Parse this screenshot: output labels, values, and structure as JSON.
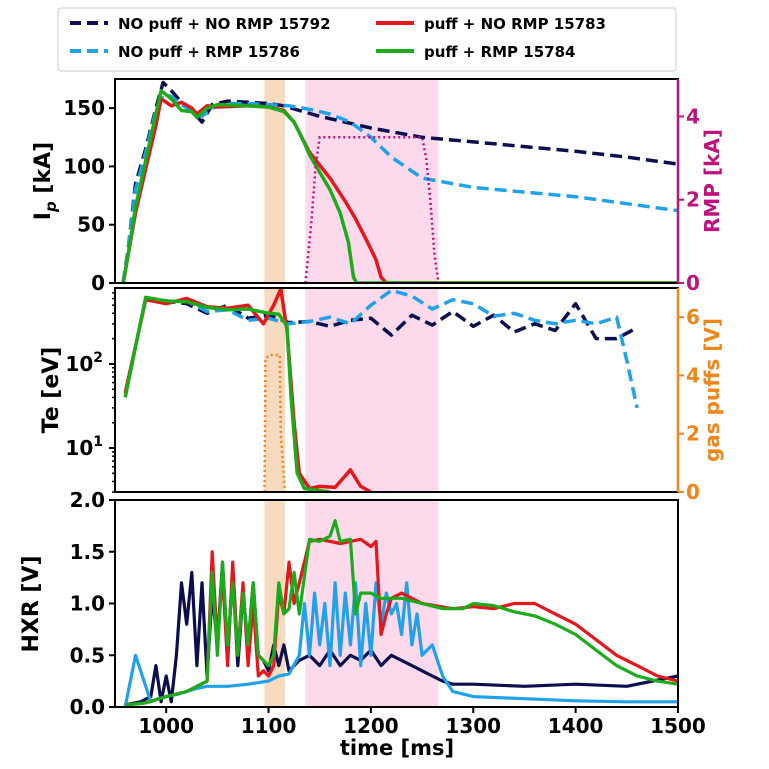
{
  "colors": {
    "navy": "#0b0f4f",
    "lightblue": "#1fa2ea",
    "red": "#e5161c",
    "green": "#1bab1b",
    "magenta": "#c0127e",
    "orange": "#f28418",
    "pink_band": "#fbd3e7",
    "orange_band": "#f7d3b3"
  },
  "chart_data": [
    {
      "type": "line",
      "panel": "top",
      "ylabel": "I",
      "ylabel_sub": "p",
      "ylabel_unit": " [kA]",
      "y2label": "RMP [kA]",
      "xlim": [
        950,
        1500
      ],
      "ylim": [
        0,
        175
      ],
      "y2lim": [
        0,
        4.9
      ],
      "yticks": [
        "0",
        "50",
        "100",
        "150"
      ],
      "y2ticks": [
        "0",
        "2",
        "4"
      ],
      "shaded_regions": [
        {
          "x0": 1096,
          "x1": 1116,
          "color": "orange"
        },
        {
          "x0": 1136,
          "x1": 1266,
          "color": "pink"
        }
      ],
      "legend": [
        {
          "label": "NO puff + NO RMP 15792",
          "color": "navy",
          "dashed": true
        },
        {
          "label": "NO puff + RMP 15786",
          "color": "lightblue",
          "dashed": true
        },
        {
          "label": "puff + NO RMP 15783",
          "color": "red",
          "dashed": false
        },
        {
          "label": "puff + RMP 15784",
          "color": "green",
          "dashed": false
        }
      ],
      "series": [
        {
          "name": "NO puff + NO RMP 15792",
          "color": "navy",
          "dash": true,
          "x": [
            958,
            963,
            970,
            980,
            990,
            997,
            1005,
            1015,
            1025,
            1035,
            1045,
            1060,
            1080,
            1100,
            1115,
            1130,
            1150,
            1200,
            1250,
            1300,
            1350,
            1400,
            1450,
            1500
          ],
          "y": [
            0,
            30,
            85,
            115,
            150,
            172,
            165,
            155,
            148,
            138,
            153,
            156,
            155,
            154,
            152,
            148,
            143,
            133,
            125,
            121,
            117,
            113,
            108,
            102
          ]
        },
        {
          "name": "NO puff + RMP 15786",
          "color": "lightblue",
          "dash": true,
          "x": [
            958,
            963,
            970,
            980,
            990,
            997,
            1005,
            1015,
            1025,
            1035,
            1045,
            1060,
            1080,
            1100,
            1120,
            1140,
            1160,
            1180,
            1200,
            1220,
            1250,
            1300,
            1350,
            1400,
            1450,
            1500
          ],
          "y": [
            0,
            30,
            80,
            112,
            148,
            162,
            160,
            153,
            148,
            143,
            150,
            154,
            154,
            153,
            152,
            149,
            145,
            138,
            125,
            108,
            90,
            82,
            78,
            74,
            68,
            62
          ]
        },
        {
          "name": "puff + NO RMP 15783",
          "color": "red",
          "dash": false,
          "x": [
            958,
            963,
            970,
            980,
            990,
            995,
            1005,
            1015,
            1025,
            1030,
            1040,
            1050,
            1080,
            1100,
            1115,
            1125,
            1140,
            1160,
            1175,
            1185,
            1195,
            1205,
            1210,
            1215,
            1300,
            1400,
            1500
          ],
          "y": [
            0,
            25,
            60,
            98,
            135,
            158,
            152,
            155,
            150,
            145,
            152,
            151,
            152,
            151,
            148,
            138,
            112,
            90,
            70,
            55,
            38,
            20,
            5,
            0,
            0,
            0,
            0
          ]
        },
        {
          "name": "puff + RMP 15784",
          "color": "green",
          "dash": false,
          "x": [
            958,
            963,
            970,
            980,
            990,
            995,
            1005,
            1015,
            1025,
            1030,
            1040,
            1050,
            1080,
            1100,
            1115,
            1125,
            1135,
            1140,
            1150,
            1160,
            1170,
            1178,
            1183,
            1186,
            1300,
            1400,
            1500
          ],
          "y": [
            0,
            25,
            65,
            105,
            145,
            165,
            158,
            148,
            147,
            142,
            150,
            153,
            152,
            151,
            147,
            138,
            120,
            110,
            95,
            80,
            60,
            35,
            5,
            0,
            0,
            0,
            0
          ]
        }
      ],
      "rmp_trace": {
        "name": "RMP",
        "color": "magenta",
        "x": [
          1136,
          1142,
          1146,
          1150,
          1200,
          1250,
          1254,
          1258,
          1262,
          1266
        ],
        "y": [
          0,
          1.5,
          2.8,
          3.5,
          3.5,
          3.5,
          3.0,
          2.0,
          0.7,
          0
        ]
      }
    },
    {
      "type": "line",
      "panel": "middle",
      "ylabel": "Te [eV]",
      "y2label": "gas puffs [V]",
      "yscale": "log",
      "xlim": [
        950,
        1500
      ],
      "ylim": [
        3,
        800
      ],
      "y2lim": [
        0,
        7
      ],
      "yticks": [
        {
          "value": 10,
          "base": "10",
          "exp": "1"
        },
        {
          "value": 100,
          "base": "10",
          "exp": "2"
        }
      ],
      "y2ticks": [
        "0",
        "2",
        "4",
        "6"
      ],
      "series": [
        {
          "name": "NO puff + NO RMP 15792",
          "color": "navy",
          "dash": true,
          "x": [
            980,
            1000,
            1020,
            1040,
            1060,
            1080,
            1100,
            1120,
            1140,
            1160,
            1180,
            1200,
            1220,
            1240,
            1260,
            1280,
            1300,
            1320,
            1340,
            1360,
            1380,
            1400,
            1420,
            1440,
            1460
          ],
          "y": [
            600,
            560,
            520,
            400,
            500,
            350,
            380,
            310,
            320,
            280,
            330,
            350,
            220,
            380,
            290,
            420,
            280,
            380,
            240,
            300,
            250,
            520,
            200,
            200,
            270
          ]
        },
        {
          "name": "NO puff + RMP 15786",
          "color": "lightblue",
          "dash": true,
          "x": [
            980,
            1000,
            1020,
            1040,
            1060,
            1080,
            1100,
            1120,
            1140,
            1160,
            1180,
            1200,
            1220,
            1240,
            1260,
            1280,
            1300,
            1320,
            1340,
            1360,
            1380,
            1400,
            1420,
            1440,
            1450,
            1460
          ],
          "y": [
            580,
            550,
            560,
            420,
            440,
            330,
            350,
            300,
            320,
            360,
            300,
            500,
            750,
            640,
            450,
            580,
            520,
            370,
            400,
            330,
            300,
            330,
            300,
            360,
            110,
            30
          ]
        },
        {
          "name": "puff + NO RMP 15783",
          "color": "red",
          "dash": false,
          "x": [
            960,
            980,
            1000,
            1020,
            1040,
            1060,
            1080,
            1095,
            1105,
            1112,
            1118,
            1125,
            1130,
            1140,
            1150,
            1165,
            1180,
            1190,
            1200
          ],
          "y": [
            45,
            580,
            520,
            600,
            480,
            460,
            500,
            300,
            500,
            780,
            250,
            20,
            5,
            3.3,
            3.5,
            3.4,
            5.5,
            3.5,
            3.0
          ]
        },
        {
          "name": "puff + RMP 15784",
          "color": "green",
          "dash": false,
          "x": [
            960,
            980,
            1000,
            1020,
            1040,
            1060,
            1080,
            1100,
            1110,
            1118,
            1122,
            1128,
            1135,
            1160
          ],
          "y": [
            40,
            620,
            560,
            550,
            470,
            440,
            450,
            400,
            390,
            280,
            40,
            5,
            3.3,
            3.0
          ]
        }
      ],
      "puff_trace": {
        "name": "gas puffs",
        "color": "orange",
        "x": [
          1096,
          1097,
          1103,
          1111,
          1112,
          1115,
          1116
        ],
        "y": [
          0,
          4.6,
          4.7,
          4.7,
          2.0,
          0.5,
          0
        ]
      }
    },
    {
      "type": "line",
      "panel": "bottom",
      "ylabel": "HXR [V]",
      "xlabel": "time [ms]",
      "xlim": [
        950,
        1500
      ],
      "ylim": [
        0,
        2.0
      ],
      "yticks": [
        "0.0",
        "0.5",
        "1.0",
        "1.5",
        "2.0"
      ],
      "xticks": [
        "1000",
        "1100",
        "1200",
        "1300",
        "1400",
        "1500"
      ],
      "series": [
        {
          "name": "NO puff + NO RMP 15792",
          "color": "navy",
          "dash": false,
          "x": [
            960,
            975,
            985,
            990,
            995,
            1000,
            1005,
            1010,
            1015,
            1020,
            1025,
            1030,
            1035,
            1040,
            1045,
            1050,
            1055,
            1060,
            1065,
            1070,
            1075,
            1080,
            1085,
            1090,
            1095,
            1100,
            1105,
            1110,
            1115,
            1120,
            1130,
            1140,
            1150,
            1160,
            1170,
            1180,
            1190,
            1200,
            1210,
            1220,
            1230,
            1240,
            1250,
            1260,
            1270,
            1280,
            1300,
            1350,
            1400,
            1450,
            1500
          ],
          "y": [
            0.02,
            0.05,
            0.1,
            0.4,
            0.05,
            0.3,
            0.05,
            0.5,
            1.2,
            0.8,
            1.3,
            0.4,
            1.2,
            0.3,
            1.1,
            0.6,
            1.4,
            0.5,
            1.3,
            0.4,
            1.1,
            0.6,
            1.2,
            0.5,
            0.45,
            0.35,
            0.6,
            0.4,
            0.6,
            0.35,
            0.45,
            0.5,
            0.4,
            0.55,
            0.4,
            0.5,
            0.45,
            0.55,
            0.4,
            0.5,
            0.45,
            0.4,
            0.35,
            0.3,
            0.25,
            0.22,
            0.22,
            0.2,
            0.22,
            0.2,
            0.3
          ]
        },
        {
          "name": "NO puff + RMP 15786",
          "color": "lightblue",
          "dash": false,
          "x": [
            960,
            970,
            985,
            992,
            1000,
            1010,
            1020,
            1030,
            1040,
            1060,
            1080,
            1100,
            1110,
            1120,
            1130,
            1135,
            1140,
            1145,
            1150,
            1155,
            1160,
            1165,
            1170,
            1175,
            1180,
            1185,
            1190,
            1195,
            1200,
            1205,
            1210,
            1215,
            1220,
            1225,
            1230,
            1235,
            1240,
            1245,
            1250,
            1260,
            1270,
            1280,
            1300,
            1350,
            1400,
            1450,
            1500
          ],
          "y": [
            0.0,
            0.5,
            0.05,
            0.08,
            0.1,
            0.12,
            0.15,
            0.18,
            0.2,
            0.2,
            0.22,
            0.25,
            0.3,
            0.32,
            0.5,
            1.0,
            0.5,
            1.1,
            0.6,
            1.0,
            0.4,
            1.2,
            0.5,
            1.1,
            0.6,
            1.2,
            0.4,
            1.0,
            0.5,
            1.2,
            0.8,
            1.1,
            0.9,
            1.0,
            0.7,
            1.2,
            0.6,
            0.9,
            0.5,
            0.6,
            0.3,
            0.15,
            0.1,
            0.08,
            0.06,
            0.05,
            0.05
          ]
        },
        {
          "name": "puff + NO RMP 15783",
          "color": "red",
          "dash": false,
          "x": [
            960,
            980,
            1000,
            1020,
            1030,
            1040,
            1045,
            1050,
            1055,
            1060,
            1065,
            1070,
            1075,
            1080,
            1085,
            1090,
            1095,
            1100,
            1105,
            1110,
            1115,
            1120,
            1125,
            1130,
            1140,
            1150,
            1160,
            1170,
            1180,
            1190,
            1200,
            1205,
            1210,
            1215,
            1220,
            1230,
            1250,
            1280,
            1300,
            1320,
            1340,
            1360,
            1380,
            1400,
            1420,
            1440,
            1460,
            1480,
            1500
          ],
          "y": [
            0.02,
            0.04,
            0.1,
            0.15,
            0.2,
            0.25,
            1.5,
            0.6,
            1.3,
            0.4,
            1.4,
            0.5,
            1.2,
            0.4,
            1.0,
            0.3,
            0.35,
            0.3,
            0.4,
            1.1,
            0.9,
            1.4,
            1.0,
            1.2,
            1.6,
            1.62,
            1.6,
            1.58,
            1.6,
            1.62,
            1.55,
            1.6,
            0.7,
            0.9,
            1.05,
            1.1,
            1.0,
            0.95,
            0.97,
            0.95,
            1.0,
            1.0,
            0.9,
            0.8,
            0.65,
            0.5,
            0.4,
            0.3,
            0.25
          ]
        },
        {
          "name": "puff + RMP 15784",
          "color": "green",
          "dash": false,
          "x": [
            960,
            980,
            1000,
            1020,
            1030,
            1040,
            1045,
            1050,
            1055,
            1060,
            1065,
            1070,
            1075,
            1080,
            1085,
            1090,
            1095,
            1100,
            1105,
            1110,
            1115,
            1120,
            1125,
            1130,
            1140,
            1150,
            1160,
            1165,
            1170,
            1180,
            1185,
            1190,
            1200,
            1210,
            1230,
            1250,
            1270,
            1290,
            1300,
            1320,
            1340,
            1360,
            1380,
            1400,
            1420,
            1440,
            1460,
            1480,
            1500
          ],
          "y": [
            0.02,
            0.04,
            0.1,
            0.15,
            0.2,
            0.25,
            1.3,
            0.5,
            1.4,
            0.6,
            1.2,
            0.5,
            1.1,
            0.6,
            1.2,
            0.5,
            0.45,
            0.4,
            0.5,
            1.2,
            0.9,
            0.95,
            1.3,
            0.9,
            1.62,
            1.6,
            1.65,
            1.8,
            1.6,
            1.62,
            0.9,
            1.1,
            1.1,
            1.05,
            1.05,
            1.0,
            0.95,
            0.95,
            1.0,
            0.98,
            0.92,
            0.88,
            0.8,
            0.7,
            0.55,
            0.4,
            0.3,
            0.25,
            0.22
          ]
        }
      ]
    }
  ]
}
